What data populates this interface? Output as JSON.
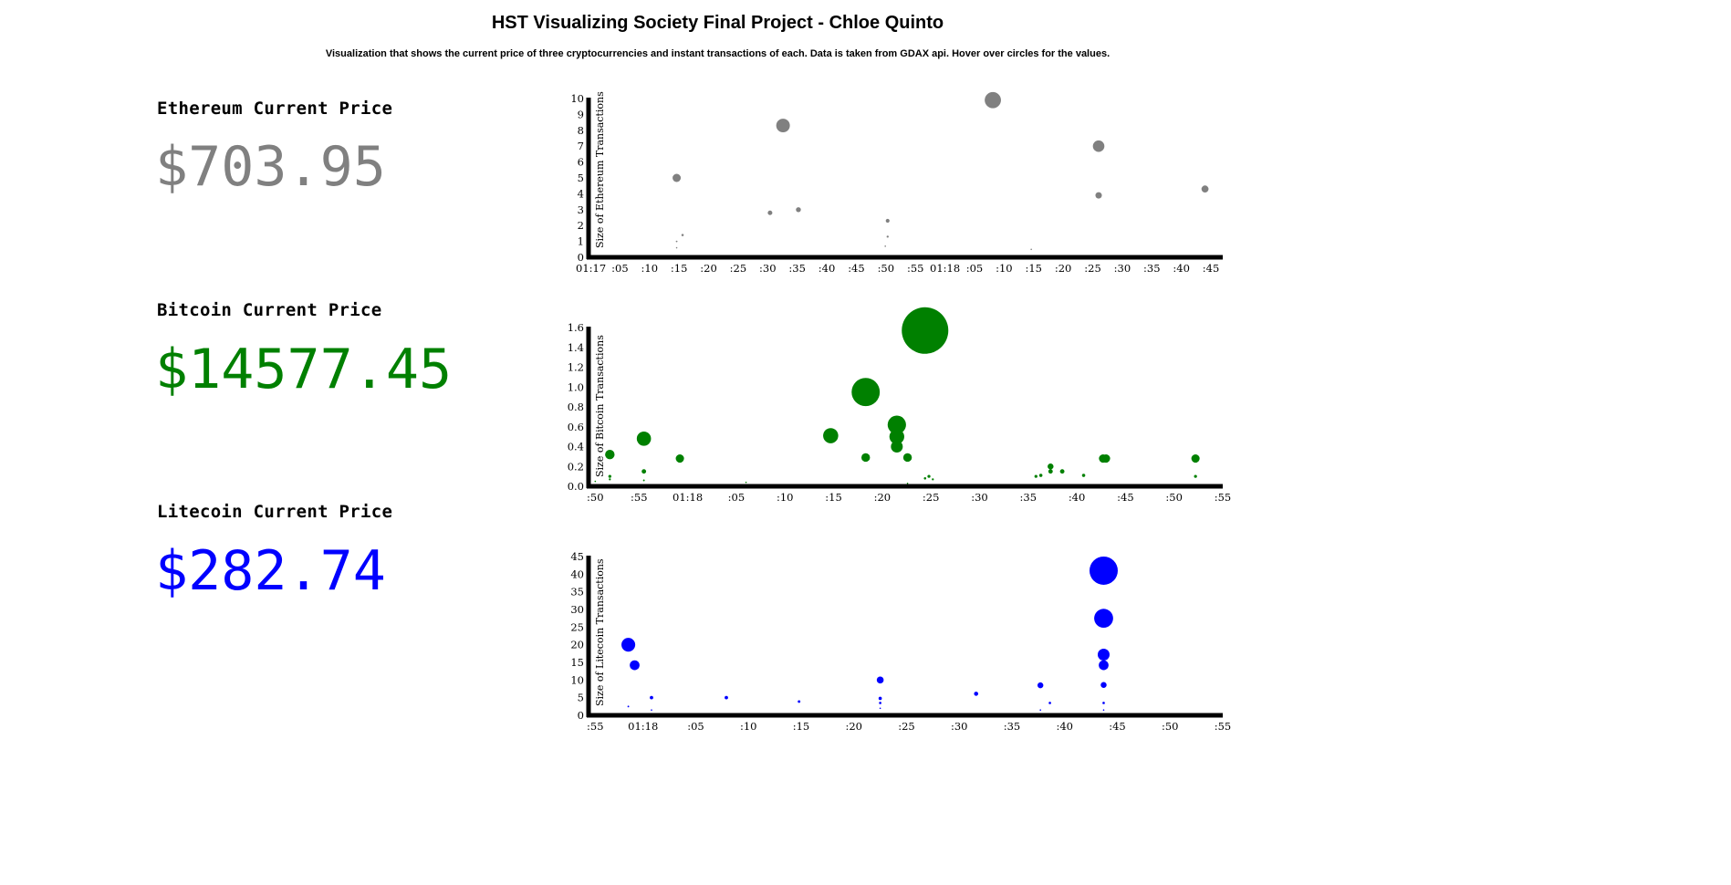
{
  "header": {
    "title": "HST Visualizing Society Final Project - Chloe Quinto",
    "subtitle": "Visualization that shows the current price of three cryptocurrencies and instant transactions of each. Data is taken from GDAX api. Hover over circles for the values."
  },
  "coins": [
    {
      "label": "Ethereum Current Price",
      "price": "$703.95",
      "color": "#808080"
    },
    {
      "label": "Bitcoin Current Price",
      "price": "$14577.45",
      "color": "#008000"
    },
    {
      "label": "Litecoin Current Price",
      "price": "$282.74",
      "color": "#0000ff"
    }
  ],
  "chart_data": [
    {
      "type": "scatter",
      "title": "",
      "ylabel": "Size of Ethereum Transactions",
      "xlabel": "",
      "color": "#808080",
      "ylim": [
        0,
        10
      ],
      "yticks": [
        "0",
        "1",
        "2",
        "3",
        "4",
        "5",
        "6",
        "7",
        "8",
        "9",
        "10"
      ],
      "x_ticks": [
        "01:17",
        ":05",
        ":10",
        ":15",
        ":20",
        ":25",
        ":30",
        ":35",
        ":40",
        ":45",
        ":50",
        ":55",
        "01:18",
        ":05",
        ":10",
        ":15",
        ":20",
        ":25",
        ":30",
        ":35",
        ":40",
        ":45"
      ],
      "xlim_min": [
        0,
        107
      ],
      "points": [
        {
          "x": 14.6,
          "y": 5.0
        },
        {
          "x": 14.6,
          "y": 1.0
        },
        {
          "x": 14.6,
          "y": 0.6
        },
        {
          "x": 15.6,
          "y": 1.4
        },
        {
          "x": 30.4,
          "y": 2.8
        },
        {
          "x": 32.6,
          "y": 8.3
        },
        {
          "x": 35.2,
          "y": 3.0
        },
        {
          "x": 50.3,
          "y": 2.3
        },
        {
          "x": 50.3,
          "y": 1.3
        },
        {
          "x": 49.9,
          "y": 0.7
        },
        {
          "x": 68.1,
          "y": 9.9
        },
        {
          "x": 74.6,
          "y": 0.5
        },
        {
          "x": 86.0,
          "y": 7.0
        },
        {
          "x": 86.0,
          "y": 3.9
        },
        {
          "x": 104.0,
          "y": 4.3
        }
      ]
    },
    {
      "type": "scatter",
      "title": "",
      "ylabel": "Size of Bitcoin Transactions",
      "xlabel": "",
      "color": "#008000",
      "ylim": [
        0,
        1.6
      ],
      "yticks": [
        "0.0",
        "0.2",
        "0.4",
        "0.6",
        "0.8",
        "1.0",
        "1.2",
        "1.4",
        "1.6"
      ],
      "x_ticks": [
        ":50",
        ":55",
        "01:18",
        ":05",
        ":10",
        ":15",
        ":20",
        ":25",
        ":30",
        ":35",
        ":40",
        ":45",
        ":50",
        ":55"
      ],
      "xlim_min": [
        0,
        65
      ],
      "points": [
        {
          "x": 0.5,
          "y": 0.05
        },
        {
          "x": 2.0,
          "y": 0.32
        },
        {
          "x": 2.0,
          "y": 0.1
        },
        {
          "x": 2.0,
          "y": 0.07
        },
        {
          "x": 5.5,
          "y": 0.48
        },
        {
          "x": 5.5,
          "y": 0.15
        },
        {
          "x": 5.5,
          "y": 0.06
        },
        {
          "x": 9.2,
          "y": 0.28
        },
        {
          "x": 16.0,
          "y": 0.04
        },
        {
          "x": 24.7,
          "y": 0.51
        },
        {
          "x": 28.3,
          "y": 0.95
        },
        {
          "x": 28.3,
          "y": 0.29
        },
        {
          "x": 31.5,
          "y": 0.62
        },
        {
          "x": 31.5,
          "y": 0.5
        },
        {
          "x": 31.5,
          "y": 0.4
        },
        {
          "x": 32.6,
          "y": 0.29
        },
        {
          "x": 34.4,
          "y": 1.57
        },
        {
          "x": 34.4,
          "y": 0.08
        },
        {
          "x": 34.8,
          "y": 0.1
        },
        {
          "x": 35.2,
          "y": 0.07
        },
        {
          "x": 32.6,
          "y": 0.03
        },
        {
          "x": 45.8,
          "y": 0.1
        },
        {
          "x": 46.3,
          "y": 0.11
        },
        {
          "x": 47.3,
          "y": 0.2
        },
        {
          "x": 47.3,
          "y": 0.15
        },
        {
          "x": 48.5,
          "y": 0.15
        },
        {
          "x": 50.7,
          "y": 0.11
        },
        {
          "x": 52.7,
          "y": 0.28
        },
        {
          "x": 53.0,
          "y": 0.28
        },
        {
          "x": 62.2,
          "y": 0.28
        },
        {
          "x": 62.2,
          "y": 0.1
        }
      ]
    },
    {
      "type": "scatter",
      "title": "",
      "ylabel": "Size of Litecoin Transactions",
      "xlabel": "",
      "color": "#0000ff",
      "ylim": [
        0,
        45
      ],
      "yticks": [
        "0",
        "5",
        "10",
        "15",
        "20",
        "25",
        "30",
        "35",
        "40",
        "45"
      ],
      "x_ticks": [
        ":55",
        "01:18",
        ":05",
        ":10",
        ":15",
        ":20",
        ":25",
        ":30",
        ":35",
        ":40",
        ":45",
        ":50",
        ":55"
      ],
      "xlim_min": [
        0,
        60
      ],
      "points": [
        {
          "x": 3.6,
          "y": 20.0
        },
        {
          "x": 4.2,
          "y": 14.2
        },
        {
          "x": 3.6,
          "y": 2.5
        },
        {
          "x": 5.8,
          "y": 5.0
        },
        {
          "x": 5.8,
          "y": 1.5
        },
        {
          "x": 12.9,
          "y": 5.0
        },
        {
          "x": 19.8,
          "y": 3.9
        },
        {
          "x": 27.5,
          "y": 10.0
        },
        {
          "x": 27.5,
          "y": 4.8
        },
        {
          "x": 27.5,
          "y": 3.5
        },
        {
          "x": 27.5,
          "y": 2.0
        },
        {
          "x": 36.6,
          "y": 6.1
        },
        {
          "x": 42.7,
          "y": 8.5
        },
        {
          "x": 43.6,
          "y": 3.5
        },
        {
          "x": 42.7,
          "y": 1.5
        },
        {
          "x": 48.7,
          "y": 41.0
        },
        {
          "x": 48.7,
          "y": 27.5
        },
        {
          "x": 48.7,
          "y": 17.2
        },
        {
          "x": 48.7,
          "y": 14.2
        },
        {
          "x": 48.7,
          "y": 8.6
        },
        {
          "x": 48.7,
          "y": 3.5
        },
        {
          "x": 48.7,
          "y": 1.5
        }
      ]
    }
  ]
}
